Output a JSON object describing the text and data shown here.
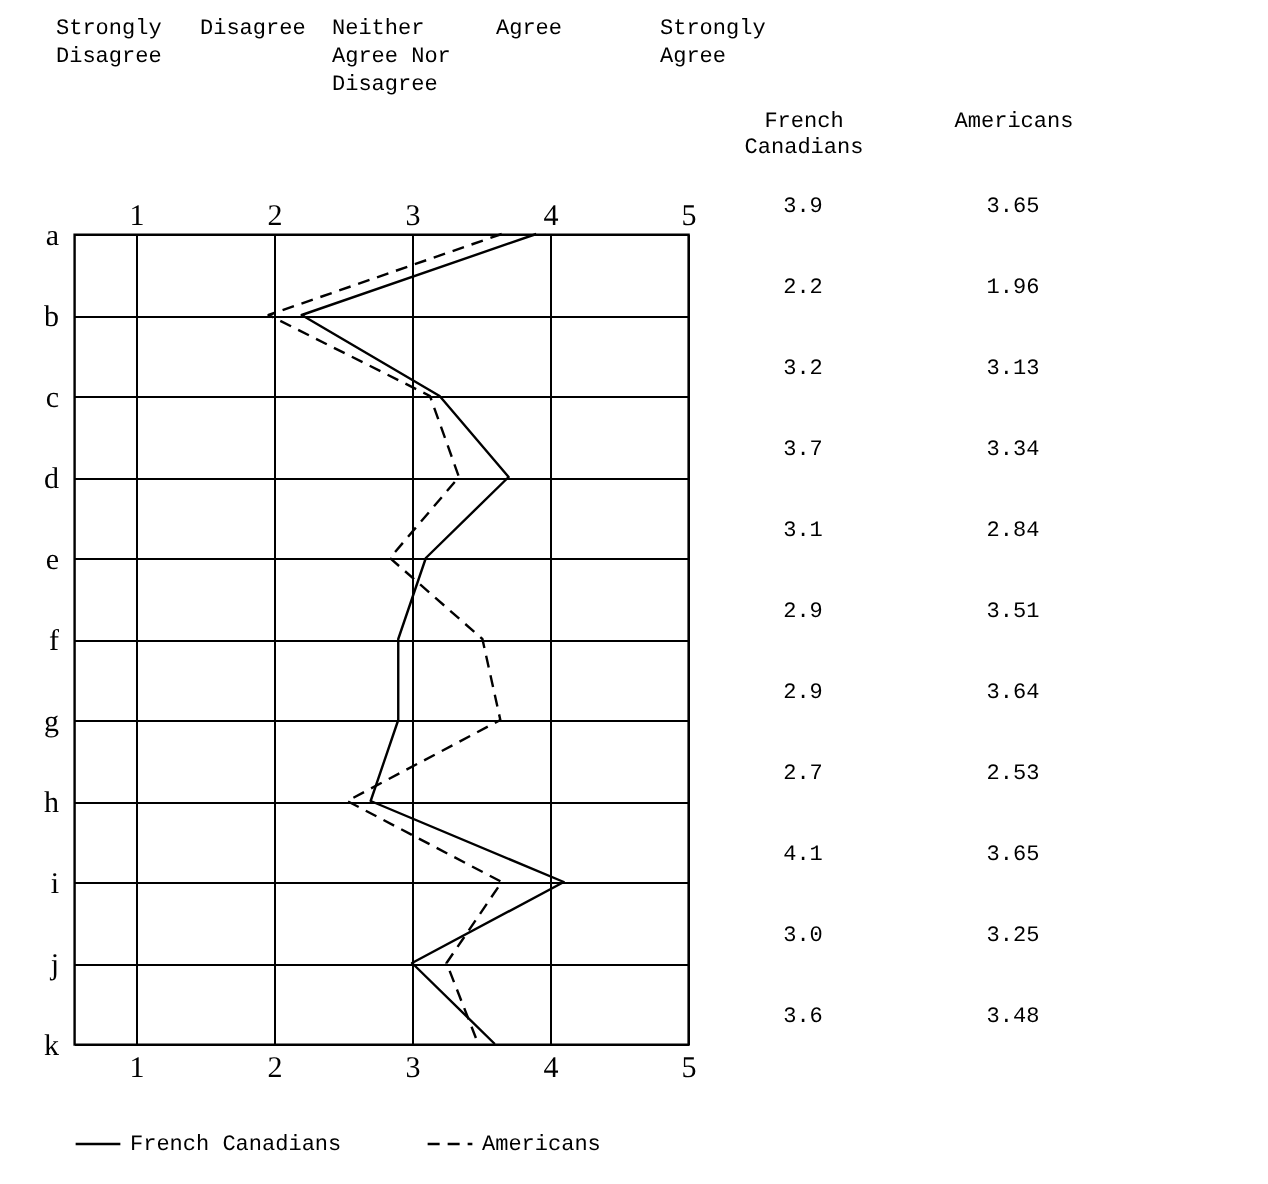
{
  "chart_data": {
    "type": "line",
    "orientation": "horizontal",
    "annotations": [
      "Strongly Disagree",
      "Disagree",
      "Neither Agree Nor Disagree",
      "Agree",
      "Strongly Agree"
    ],
    "categories": [
      "a",
      "b",
      "c",
      "d",
      "e",
      "f",
      "g",
      "h",
      "i",
      "j",
      "k"
    ],
    "xlim": [
      0.55,
      5
    ],
    "xticks": [
      1,
      2,
      3,
      4,
      5
    ],
    "x2lim": [
      0.55,
      5
    ],
    "x2ticks": [
      1,
      2,
      3,
      4,
      5
    ],
    "grid": true,
    "legend": "bottom",
    "series": [
      {
        "name": "French Canadians",
        "color": "#000000",
        "line_style": "solid",
        "values": [
          3.9,
          2.2,
          3.2,
          3.7,
          3.1,
          2.9,
          2.9,
          2.7,
          4.1,
          3.0,
          3.6
        ],
        "value_labels": [
          "3.9",
          "2.2",
          "3.2",
          "3.7",
          "3.1",
          "2.9",
          "2.9",
          "2.7",
          "4.1",
          "3.0",
          "3.6"
        ]
      },
      {
        "name": "Americans",
        "color": "#000000",
        "line_style": "dashed",
        "values": [
          3.65,
          1.96,
          3.13,
          3.34,
          2.84,
          3.51,
          3.64,
          2.53,
          3.65,
          3.25,
          3.48
        ],
        "value_labels": [
          "3.65",
          "1.96",
          "3.13",
          "3.34",
          "2.84",
          "3.51",
          "3.64",
          "2.53",
          "3.65",
          "3.25",
          "3.48"
        ]
      }
    ]
  }
}
